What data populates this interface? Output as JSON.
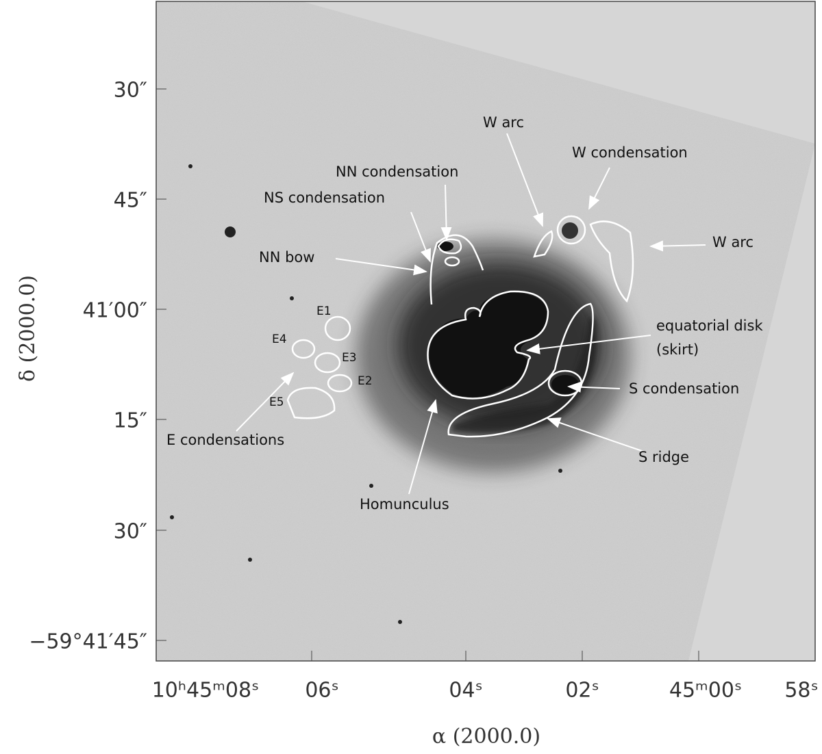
{
  "y_axis": {
    "label": "δ (2000.0)",
    "ticks": [
      "30″",
      "45″",
      "41′00″",
      "15″",
      "30″",
      "−59°41′45″"
    ]
  },
  "x_axis": {
    "label": "α (2000.0)",
    "ticks": [
      "10ʰ45ᵐ08ˢ",
      "06ˢ",
      "04ˢ",
      "02ˢ",
      "45ᵐ00ˢ",
      "58ˢ"
    ]
  },
  "annotations": [
    "W  arc",
    "W condensation",
    "NN condensation",
    "NS condensation",
    "W  arc",
    "NN bow",
    "E1",
    "E4",
    "E3",
    "E2",
    "E5",
    "E condensations",
    "equatorial disk",
    "(skirt)",
    "S condensation",
    "S ridge",
    "Homunculus"
  ]
}
